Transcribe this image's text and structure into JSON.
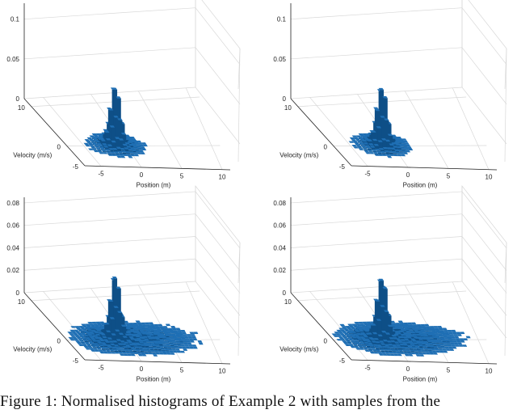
{
  "caption": "Figure 1: Normalised histograms of Example 2 with samples from the",
  "chart_data": [
    {
      "type": "surface-histogram",
      "xlabel": "Position (m)",
      "ylabel": "Velocity (m/s)",
      "xticks": [
        "-5",
        "0",
        "5",
        "10"
      ],
      "yticks": [
        "10",
        "0",
        "-5"
      ],
      "zticks": [
        "0",
        "0.05",
        "0.1"
      ],
      "xlim": [
        -7,
        11
      ],
      "ylim": [
        -5,
        12
      ],
      "zlim": [
        0,
        0.12
      ],
      "peak": {
        "x": -1.5,
        "y": 0.5,
        "z": 0.072
      },
      "base_spread": {
        "x": 3.0,
        "y": 2.5
      },
      "tail_toward_positive_x": false,
      "grid": true
    },
    {
      "type": "surface-histogram",
      "xlabel": "Position (m)",
      "ylabel": "Velocity (m/s)",
      "xticks": [
        "-5",
        "0",
        "5",
        "10"
      ],
      "yticks": [
        "10",
        "0",
        "-5"
      ],
      "zticks": [
        "0",
        "0.05",
        "0.1"
      ],
      "xlim": [
        -7,
        11
      ],
      "ylim": [
        -5,
        12
      ],
      "zlim": [
        0,
        0.12
      ],
      "peak": {
        "x": -1.5,
        "y": 0.5,
        "z": 0.072
      },
      "base_spread": {
        "x": 3.0,
        "y": 2.5
      },
      "tail_toward_positive_x": false,
      "grid": true
    },
    {
      "type": "surface-histogram",
      "xlabel": "Position (m)",
      "ylabel": "Velocity (m/s)",
      "xticks": [
        "-5",
        "0",
        "5",
        "10"
      ],
      "yticks": [
        "10",
        "0",
        "-5"
      ],
      "zticks": [
        "0",
        "0.02",
        "0.04",
        "0.06",
        "0.08"
      ],
      "xlim": [
        -7,
        11
      ],
      "ylim": [
        -5,
        12
      ],
      "zlim": [
        0,
        0.085
      ],
      "peak": {
        "x": -1.5,
        "y": 0.5,
        "z": 0.055
      },
      "base_spread": {
        "x": 4.5,
        "y": 3.5
      },
      "tail_toward_positive_x": true,
      "grid": true
    },
    {
      "type": "surface-histogram",
      "xlabel": "Position (m)",
      "ylabel": "Velocity (m/s)",
      "xticks": [
        "-5",
        "0",
        "5",
        "10"
      ],
      "yticks": [
        "10",
        "0",
        "-5"
      ],
      "zticks": [
        "0",
        "0.02",
        "0.04",
        "0.06",
        "0.08"
      ],
      "xlim": [
        -7,
        11
      ],
      "ylim": [
        -5,
        12
      ],
      "zlim": [
        0,
        0.085
      ],
      "peak": {
        "x": -1.5,
        "y": 0.5,
        "z": 0.055
      },
      "base_spread": {
        "x": 4.5,
        "y": 3.5
      },
      "tail_toward_positive_x": true,
      "grid": true
    }
  ],
  "colors": {
    "surface": "#1f6fb4",
    "surface_dark": "#0e4f87",
    "axis": "#222222",
    "grid": "#d8d8d8"
  }
}
